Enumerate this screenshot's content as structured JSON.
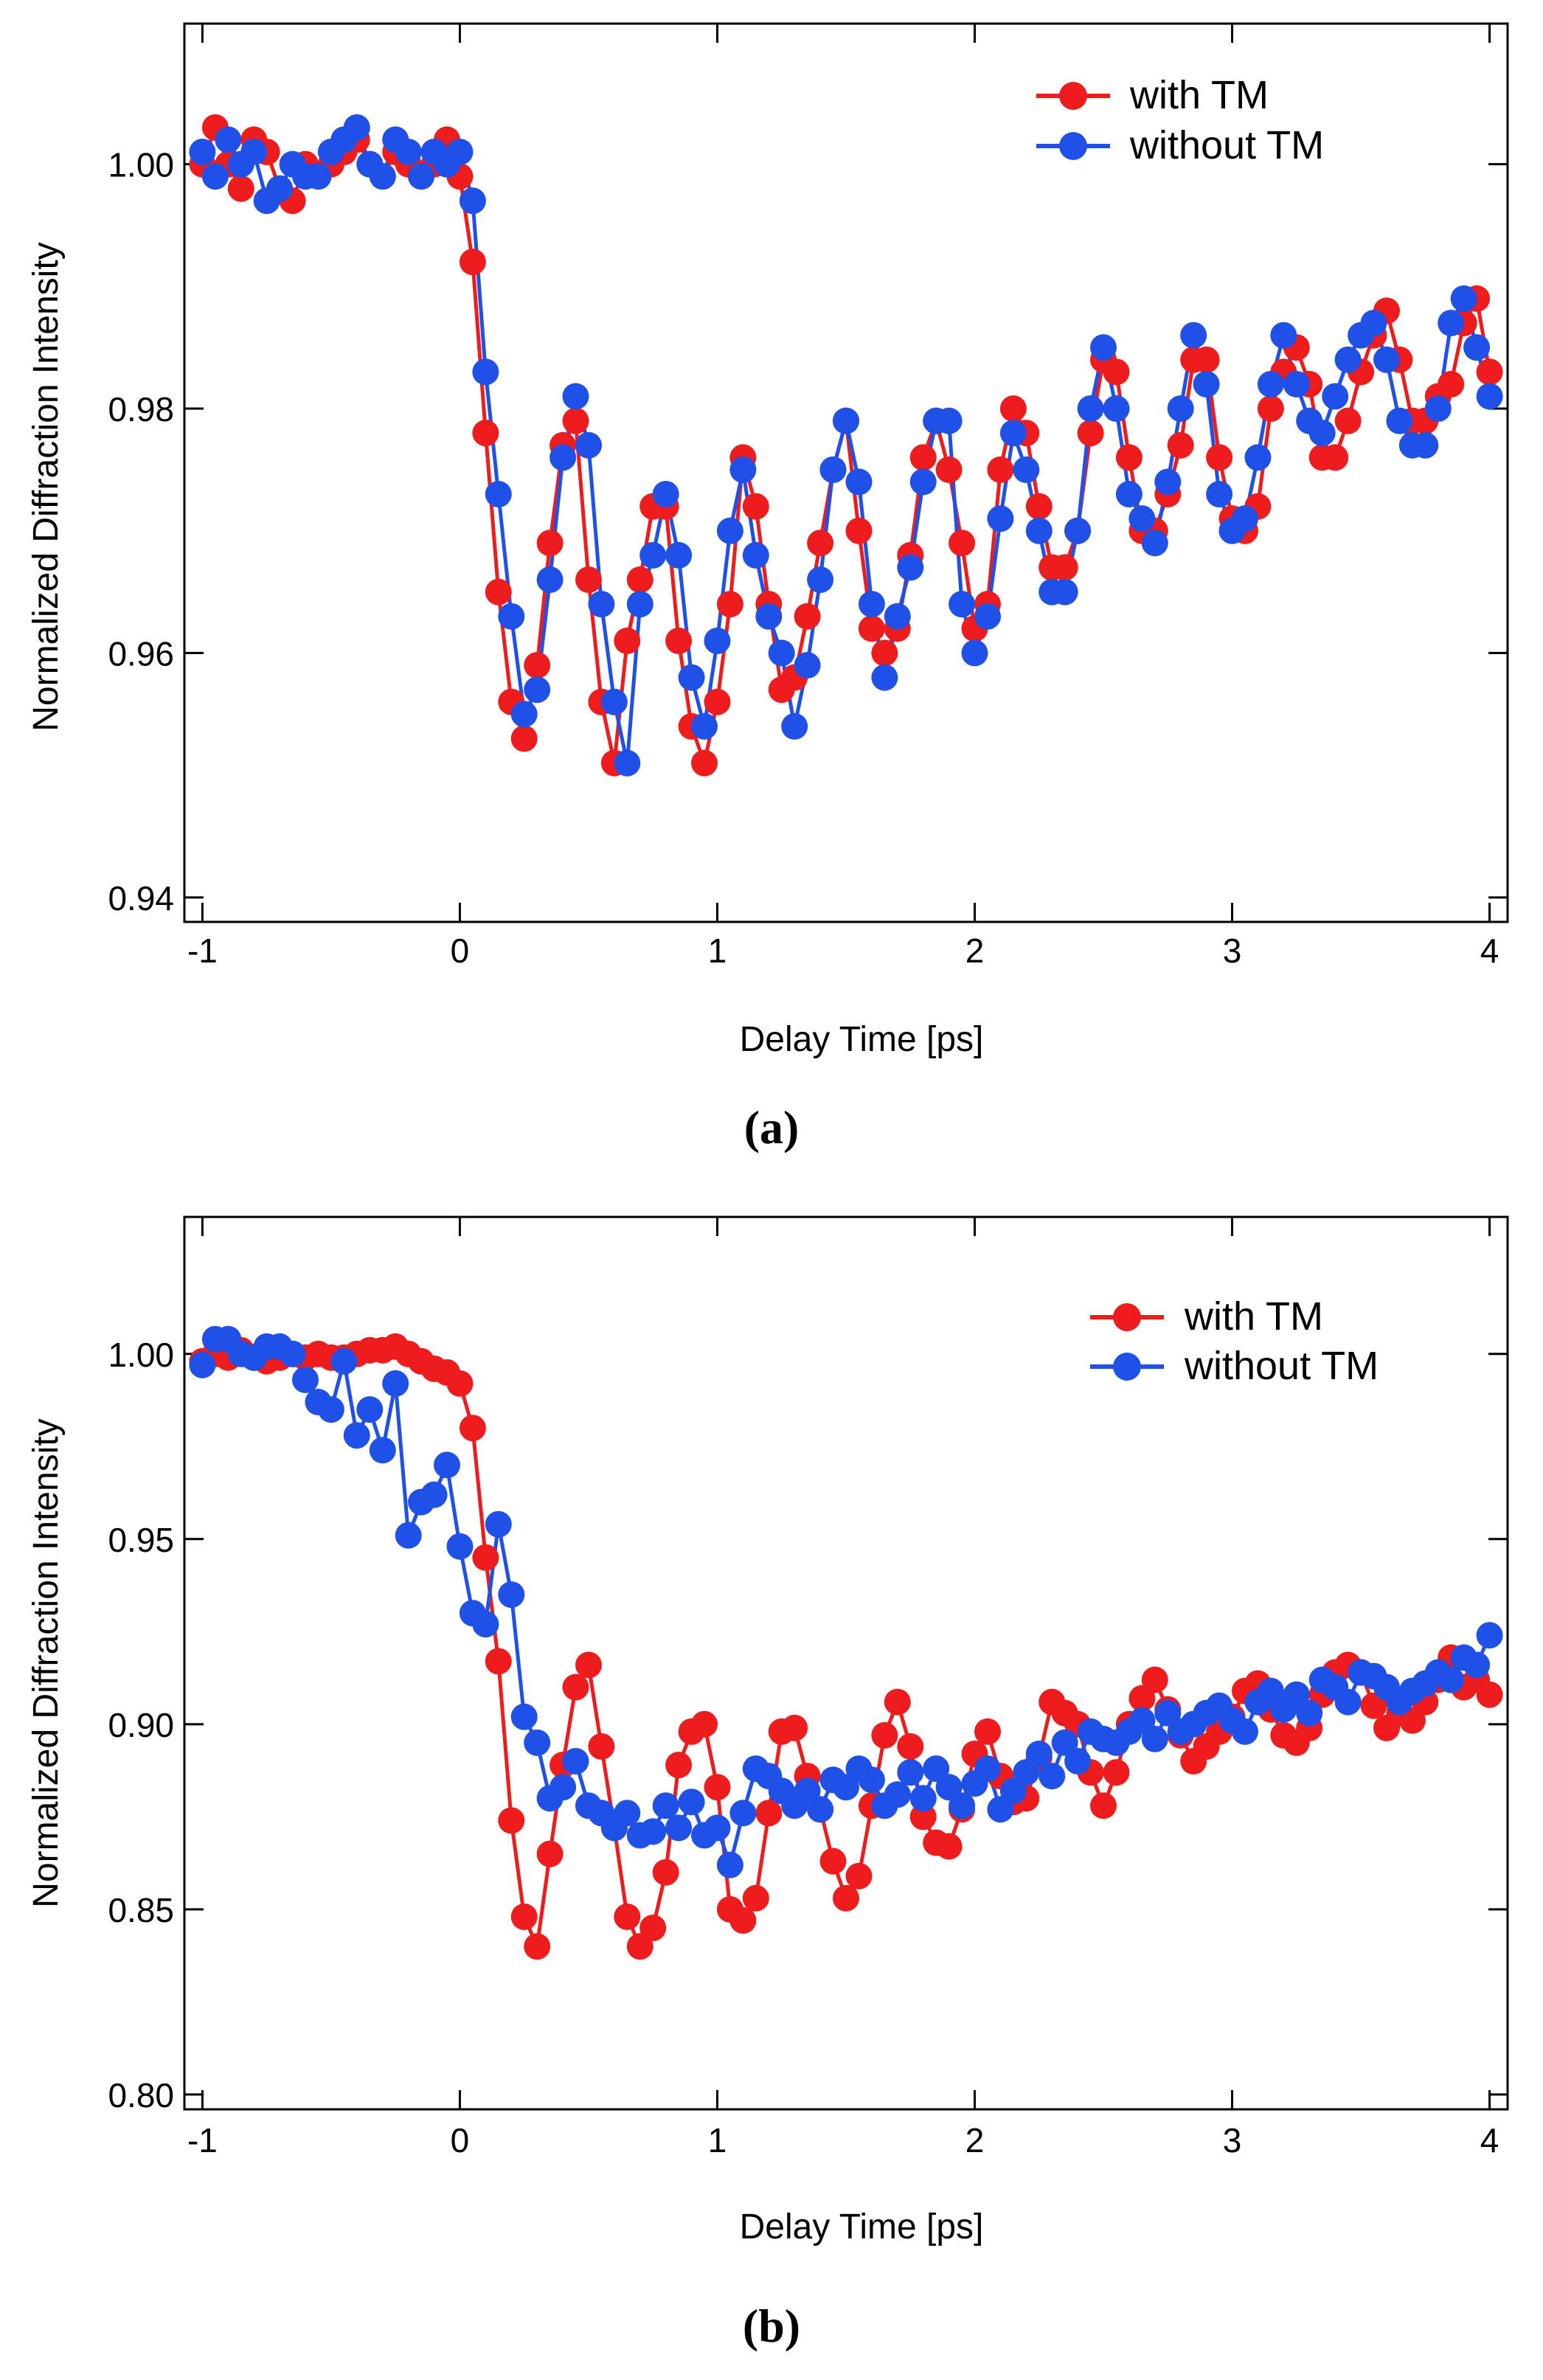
{
  "colors": {
    "with_tm": "#ee1c1c",
    "without_tm": "#1f50e8",
    "axis": "#000000",
    "background": "#ffffff"
  },
  "chart_data": [
    {
      "type": "line",
      "panel_label": "(a)",
      "xlabel": "Delay Time [ps]",
      "ylabel": "Normalized Diffraction Intensity",
      "xlim": [
        -1.07,
        4.07
      ],
      "ylim": [
        0.938,
        1.0115
      ],
      "xticks": [
        -1,
        0,
        1,
        2,
        3,
        4
      ],
      "yticks": [
        0.94,
        0.96,
        0.98,
        1.0
      ],
      "ytick_labels": [
        "0.94",
        "0.96",
        "0.98",
        "1.00"
      ],
      "grid": false,
      "legend": "top-right",
      "series": [
        {
          "name": "with TM",
          "color": "#ee1c1c",
          "x": [
            -1.0,
            -0.95,
            -0.9,
            -0.85,
            -0.8,
            -0.75,
            -0.7,
            -0.65,
            -0.6,
            -0.55,
            -0.5,
            -0.45,
            -0.4,
            -0.35,
            -0.3,
            -0.25,
            -0.2,
            -0.15,
            -0.1,
            -0.05,
            0.0,
            0.05,
            0.1,
            0.15,
            0.2,
            0.25,
            0.3,
            0.35,
            0.4,
            0.45,
            0.5,
            0.55,
            0.6,
            0.65,
            0.7,
            0.75,
            0.8,
            0.85,
            0.9,
            0.95,
            1.0,
            1.05,
            1.1,
            1.15,
            1.2,
            1.25,
            1.3,
            1.35,
            1.4,
            1.45,
            1.5,
            1.55,
            1.6,
            1.65,
            1.7,
            1.75,
            1.8,
            1.85,
            1.9,
            1.95,
            2.0,
            2.05,
            2.1,
            2.15,
            2.2,
            2.25,
            2.3,
            2.35,
            2.4,
            2.45,
            2.5,
            2.55,
            2.6,
            2.65,
            2.7,
            2.75,
            2.8,
            2.85,
            2.9,
            2.95,
            3.0,
            3.05,
            3.1,
            3.15,
            3.2,
            3.25,
            3.3,
            3.35,
            3.4,
            3.45,
            3.5,
            3.55,
            3.6,
            3.65,
            3.7,
            3.75,
            3.8,
            3.85,
            3.9,
            3.95,
            4.0
          ],
          "y": [
            1.0,
            1.003,
            1.0,
            0.998,
            1.002,
            1.001,
            0.998,
            0.997,
            1.0,
            0.999,
            1.0,
            1.001,
            1.002,
            1.0,
            0.999,
            1.001,
            1.0,
            0.999,
            1.0,
            1.002,
            0.999,
            0.992,
            0.978,
            0.965,
            0.956,
            0.953,
            0.959,
            0.969,
            0.977,
            0.979,
            0.966,
            0.956,
            0.951,
            0.961,
            0.966,
            0.972,
            0.972,
            0.961,
            0.954,
            0.951,
            0.956,
            0.964,
            0.976,
            0.972,
            0.964,
            0.957,
            0.958,
            0.963,
            0.969,
            0.975,
            0.979,
            0.97,
            0.962,
            0.96,
            0.962,
            0.968,
            0.976,
            0.979,
            0.975,
            0.969,
            0.962,
            0.964,
            0.975,
            0.98,
            0.978,
            0.972,
            0.967,
            0.967,
            0.97,
            0.978,
            0.984,
            0.983,
            0.976,
            0.97,
            0.97,
            0.973,
            0.977,
            0.984,
            0.984,
            0.976,
            0.971,
            0.97,
            0.972,
            0.98,
            0.983,
            0.985,
            0.982,
            0.976,
            0.976,
            0.979,
            0.983,
            0.986,
            0.988,
            0.984,
            0.979,
            0.979,
            0.981,
            0.982,
            0.987,
            0.989,
            0.983
          ]
        },
        {
          "name": "without TM",
          "color": "#1f50e8",
          "x": [
            -1.0,
            -0.95,
            -0.9,
            -0.85,
            -0.8,
            -0.75,
            -0.7,
            -0.65,
            -0.6,
            -0.55,
            -0.5,
            -0.45,
            -0.4,
            -0.35,
            -0.3,
            -0.25,
            -0.2,
            -0.15,
            -0.1,
            -0.05,
            0.0,
            0.05,
            0.1,
            0.15,
            0.2,
            0.25,
            0.3,
            0.35,
            0.4,
            0.45,
            0.5,
            0.55,
            0.6,
            0.65,
            0.7,
            0.75,
            0.8,
            0.85,
            0.9,
            0.95,
            1.0,
            1.05,
            1.1,
            1.15,
            1.2,
            1.25,
            1.3,
            1.35,
            1.4,
            1.45,
            1.5,
            1.55,
            1.6,
            1.65,
            1.7,
            1.75,
            1.8,
            1.85,
            1.9,
            1.95,
            2.0,
            2.05,
            2.1,
            2.15,
            2.2,
            2.25,
            2.3,
            2.35,
            2.4,
            2.45,
            2.5,
            2.55,
            2.6,
            2.65,
            2.7,
            2.75,
            2.8,
            2.85,
            2.9,
            2.95,
            3.0,
            3.05,
            3.1,
            3.15,
            3.2,
            3.25,
            3.3,
            3.35,
            3.4,
            3.45,
            3.5,
            3.55,
            3.6,
            3.65,
            3.7,
            3.75,
            3.8,
            3.85,
            3.9,
            3.95,
            4.0
          ],
          "y": [
            1.001,
            0.999,
            1.002,
            1.0,
            1.001,
            0.997,
            0.998,
            1.0,
            0.999,
            0.999,
            1.001,
            1.002,
            1.003,
            1.0,
            0.999,
            1.002,
            1.001,
            0.999,
            1.001,
            1.0,
            1.001,
            0.997,
            0.983,
            0.973,
            0.963,
            0.955,
            0.957,
            0.966,
            0.976,
            0.981,
            0.977,
            0.964,
            0.956,
            0.951,
            0.964,
            0.968,
            0.973,
            0.968,
            0.958,
            0.954,
            0.961,
            0.97,
            0.975,
            0.968,
            0.963,
            0.96,
            0.954,
            0.959,
            0.966,
            0.975,
            0.979,
            0.974,
            0.964,
            0.958,
            0.963,
            0.967,
            0.974,
            0.979,
            0.979,
            0.964,
            0.96,
            0.963,
            0.971,
            0.978,
            0.975,
            0.97,
            0.965,
            0.965,
            0.97,
            0.98,
            0.985,
            0.98,
            0.973,
            0.971,
            0.969,
            0.974,
            0.98,
            0.986,
            0.982,
            0.973,
            0.97,
            0.971,
            0.976,
            0.982,
            0.986,
            0.982,
            0.979,
            0.978,
            0.981,
            0.984,
            0.986,
            0.987,
            0.984,
            0.979,
            0.977,
            0.977,
            0.98,
            0.987,
            0.989,
            0.985,
            0.981
          ]
        }
      ]
    },
    {
      "type": "line",
      "panel_label": "(b)",
      "xlabel": "Delay Time  [ps]",
      "ylabel": "Normalized Diffraction Intensity",
      "xlim": [
        -1.07,
        4.07
      ],
      "ylim": [
        0.796,
        1.037
      ],
      "xticks": [
        -1,
        0,
        1,
        2,
        3,
        4
      ],
      "yticks": [
        0.8,
        0.85,
        0.9,
        0.95,
        1.0
      ],
      "ytick_labels": [
        "0.80",
        "0.85",
        "0.90",
        "0.95",
        "1.00"
      ],
      "grid": false,
      "legend": "top-right",
      "series": [
        {
          "name": "with TM",
          "color": "#ee1c1c",
          "x": [
            -1.0,
            -0.95,
            -0.9,
            -0.85,
            -0.8,
            -0.75,
            -0.7,
            -0.65,
            -0.6,
            -0.55,
            -0.5,
            -0.45,
            -0.4,
            -0.35,
            -0.3,
            -0.25,
            -0.2,
            -0.15,
            -0.1,
            -0.05,
            0.0,
            0.05,
            0.1,
            0.15,
            0.2,
            0.25,
            0.3,
            0.35,
            0.4,
            0.45,
            0.5,
            0.55,
            0.6,
            0.65,
            0.7,
            0.75,
            0.8,
            0.85,
            0.9,
            0.95,
            1.0,
            1.05,
            1.1,
            1.15,
            1.2,
            1.25,
            1.3,
            1.35,
            1.4,
            1.45,
            1.5,
            1.55,
            1.6,
            1.65,
            1.7,
            1.75,
            1.8,
            1.85,
            1.9,
            1.95,
            2.0,
            2.05,
            2.1,
            2.15,
            2.2,
            2.25,
            2.3,
            2.35,
            2.4,
            2.45,
            2.5,
            2.55,
            2.6,
            2.65,
            2.7,
            2.75,
            2.8,
            2.85,
            2.9,
            2.95,
            3.0,
            3.05,
            3.1,
            3.15,
            3.2,
            3.25,
            3.3,
            3.35,
            3.4,
            3.45,
            3.5,
            3.55,
            3.6,
            3.65,
            3.7,
            3.75,
            3.8,
            3.85,
            3.9,
            3.95,
            4.0
          ],
          "y": [
            0.998,
            1.0,
            0.999,
            1.001,
            0.999,
            0.998,
            0.999,
            1.0,
            0.999,
            1.0,
            0.999,
            0.999,
            1.0,
            1.001,
            1.001,
            1.002,
            1.0,
            0.998,
            0.996,
            0.995,
            0.992,
            0.98,
            0.945,
            0.917,
            0.874,
            0.848,
            0.84,
            0.865,
            0.889,
            0.91,
            0.916,
            0.894,
            0.872,
            0.848,
            0.84,
            0.845,
            0.86,
            0.889,
            0.898,
            0.9,
            0.883,
            0.85,
            0.847,
            0.853,
            0.876,
            0.898,
            0.899,
            0.886,
            0.877,
            0.863,
            0.853,
            0.859,
            0.878,
            0.897,
            0.906,
            0.894,
            0.875,
            0.868,
            0.867,
            0.877,
            0.892,
            0.898,
            0.886,
            0.879,
            0.88,
            0.891,
            0.906,
            0.903,
            0.9,
            0.887,
            0.878,
            0.887,
            0.9,
            0.907,
            0.912,
            0.904,
            0.897,
            0.89,
            0.894,
            0.898,
            0.902,
            0.909,
            0.911,
            0.904,
            0.897,
            0.895,
            0.899,
            0.908,
            0.914,
            0.916,
            0.914,
            0.905,
            0.899,
            0.903,
            0.901,
            0.906,
            0.912,
            0.918,
            0.91,
            0.912,
            0.908
          ]
        },
        {
          "name": "without TM",
          "color": "#1f50e8",
          "x": [
            -1.0,
            -0.95,
            -0.9,
            -0.85,
            -0.8,
            -0.75,
            -0.7,
            -0.65,
            -0.6,
            -0.55,
            -0.5,
            -0.45,
            -0.4,
            -0.35,
            -0.3,
            -0.25,
            -0.2,
            -0.15,
            -0.1,
            -0.05,
            0.0,
            0.05,
            0.1,
            0.15,
            0.2,
            0.25,
            0.3,
            0.35,
            0.4,
            0.45,
            0.5,
            0.55,
            0.6,
            0.65,
            0.7,
            0.75,
            0.8,
            0.85,
            0.9,
            0.95,
            1.0,
            1.05,
            1.1,
            1.15,
            1.2,
            1.25,
            1.3,
            1.35,
            1.4,
            1.45,
            1.5,
            1.55,
            1.6,
            1.65,
            1.7,
            1.75,
            1.8,
            1.85,
            1.9,
            1.95,
            2.0,
            2.05,
            2.1,
            2.15,
            2.2,
            2.25,
            2.3,
            2.35,
            2.4,
            2.45,
            2.5,
            2.55,
            2.6,
            2.65,
            2.7,
            2.75,
            2.8,
            2.85,
            2.9,
            2.95,
            3.0,
            3.05,
            3.1,
            3.15,
            3.2,
            3.25,
            3.3,
            3.35,
            3.4,
            3.45,
            3.5,
            3.55,
            3.6,
            3.65,
            3.7,
            3.75,
            3.8,
            3.85,
            3.9,
            3.95,
            4.0
          ],
          "y": [
            0.997,
            1.004,
            1.004,
            1.0,
            0.999,
            1.002,
            1.002,
            1.0,
            0.993,
            0.987,
            0.985,
            0.998,
            0.978,
            0.985,
            0.974,
            0.992,
            0.951,
            0.96,
            0.962,
            0.97,
            0.948,
            0.93,
            0.927,
            0.954,
            0.935,
            0.902,
            0.895,
            0.88,
            0.883,
            0.89,
            0.878,
            0.876,
            0.872,
            0.876,
            0.87,
            0.871,
            0.878,
            0.872,
            0.879,
            0.87,
            0.872,
            0.862,
            0.876,
            0.888,
            0.886,
            0.882,
            0.878,
            0.882,
            0.877,
            0.885,
            0.883,
            0.888,
            0.885,
            0.878,
            0.881,
            0.887,
            0.88,
            0.888,
            0.883,
            0.878,
            0.884,
            0.888,
            0.877,
            0.882,
            0.887,
            0.892,
            0.886,
            0.895,
            0.89,
            0.898,
            0.896,
            0.895,
            0.898,
            0.901,
            0.896,
            0.903,
            0.898,
            0.9,
            0.903,
            0.905,
            0.901,
            0.898,
            0.906,
            0.909,
            0.904,
            0.908,
            0.903,
            0.912,
            0.91,
            0.906,
            0.914,
            0.913,
            0.91,
            0.906,
            0.909,
            0.911,
            0.914,
            0.912,
            0.918,
            0.916,
            0.924
          ]
        }
      ]
    }
  ]
}
